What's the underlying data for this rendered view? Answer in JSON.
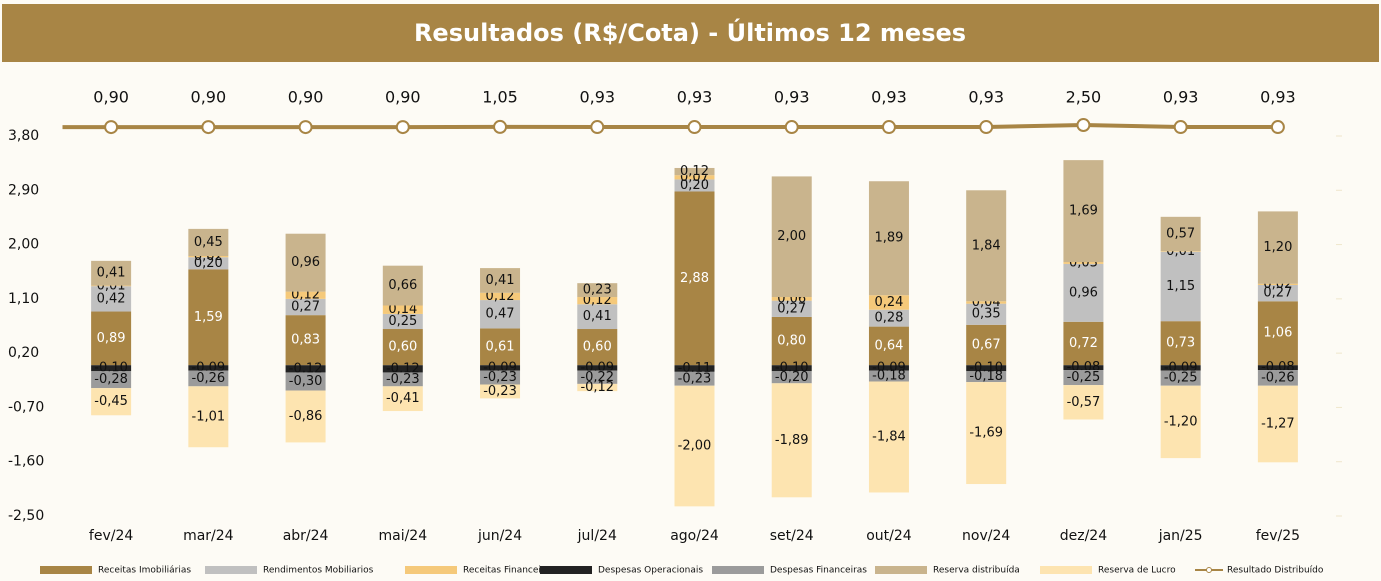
{
  "chart_data": {
    "type": "bar",
    "stacked": true,
    "title": "Resultados (R$/Cota) - Últimos 12 meses",
    "categories": [
      "fev/24",
      "mar/24",
      "abr/24",
      "mai/24",
      "jun/24",
      "jul/24",
      "ago/24",
      "set/24",
      "out/24",
      "nov/24",
      "dez/24",
      "jan/25",
      "fev/25"
    ],
    "ylim": [
      -2.5,
      3.8
    ],
    "yticks": [
      {
        "value": 3.8,
        "label": "3,80"
      },
      {
        "value": 2.9,
        "label": "2,90"
      },
      {
        "value": 2.0,
        "label": "2,00"
      },
      {
        "value": 1.1,
        "label": "1,10"
      },
      {
        "value": 0.2,
        "label": "0,20"
      },
      {
        "value": -0.7,
        "label": "-0,70"
      },
      {
        "value": -1.6,
        "label": "-1,60"
      },
      {
        "value": -2.5,
        "label": "-2,50"
      }
    ],
    "y2lim": [
      -300,
      -6
    ],
    "grid": false,
    "legend": "bottom",
    "series": [
      {
        "name": "Receitas Imobiliárias",
        "color": "#a88545",
        "values": [
          0.89,
          1.59,
          0.83,
          0.6,
          0.61,
          0.6,
          2.88,
          0.8,
          0.64,
          0.67,
          0.72,
          0.73,
          1.06
        ],
        "value_labels": [
          "0,89",
          "1,59",
          "0,83",
          "0,60",
          "0,61",
          "0,60",
          "2,88",
          "0,80",
          "0,64",
          "0,67",
          "0,72",
          "0,73",
          "1,06"
        ]
      },
      {
        "name": "Rendimentos Mobiliarios",
        "color": "#c0c0c0",
        "values": [
          0.42,
          0.2,
          0.27,
          0.25,
          0.47,
          0.41,
          0.2,
          0.27,
          0.28,
          0.35,
          0.96,
          1.15,
          0.27
        ],
        "value_labels": [
          "0,42",
          "0,20",
          "0,27",
          "0,25",
          "0,47",
          "0,41",
          "0,20",
          "0,27",
          "0,28",
          "0,35",
          "0,96",
          "1,15",
          "0,27"
        ]
      },
      {
        "name": "Receitas Financeiras",
        "color": "#f5c97a",
        "values": [
          0.01,
          0.02,
          0.12,
          0.14,
          0.12,
          0.12,
          0.07,
          0.06,
          0.24,
          0.04,
          0.03,
          0.01,
          0.02
        ],
        "value_labels": [
          "0,01",
          "0,02",
          "0,12",
          "0,14",
          "0,12",
          "0,12",
          "0,07",
          "0,06",
          "0,24",
          "0,04",
          "0,03",
          "0,01",
          "0,02"
        ]
      },
      {
        "name": "Despesas Operacionais",
        "color": "#222222",
        "values": [
          -0.1,
          -0.09,
          -0.12,
          -0.12,
          -0.09,
          -0.09,
          -0.11,
          -0.1,
          -0.09,
          -0.1,
          -0.08,
          -0.09,
          -0.08
        ],
        "value_labels": [
          "-0,10",
          "-0,09",
          "-0,12",
          "-0,12",
          "-0,09",
          "-0,09",
          "-0,11",
          "-0,10",
          "-0,09",
          "-0,10",
          "-0,08",
          "-0,09",
          "-0,08"
        ]
      },
      {
        "name": "Despesas Financeiras",
        "color": "#9b9b9b",
        "values": [
          -0.28,
          -0.26,
          -0.3,
          -0.23,
          -0.23,
          -0.22,
          -0.23,
          -0.2,
          -0.18,
          -0.18,
          -0.25,
          -0.25,
          -0.26
        ],
        "value_labels": [
          "-0,28",
          "-0,26",
          "-0,30",
          "-0,23",
          "-0,23",
          "-0,22",
          "-0,23",
          "-0,20",
          "-0,18",
          "-0,18",
          "-0,25",
          "-0,25",
          "-0,26"
        ]
      },
      {
        "name": "Reserva distribuída",
        "color": "#c9b48d",
        "values": [
          0.41,
          0.45,
          0.96,
          0.66,
          0.41,
          0.23,
          0.12,
          2.0,
          1.89,
          1.84,
          1.69,
          0.57,
          1.2
        ],
        "value_labels": [
          "0,41",
          "0,45",
          "0,96",
          "0,66",
          "0,41",
          "0,23",
          "0,12",
          "2,00",
          "1,89",
          "1,84",
          "1,69",
          "0,57",
          "1,20"
        ]
      },
      {
        "name": "Reserva de Lucro",
        "color": "#fde4b0",
        "values": [
          -0.45,
          -1.01,
          -0.86,
          -0.41,
          -0.23,
          -0.12,
          -2.0,
          -1.89,
          -1.84,
          -1.69,
          -0.57,
          -1.2,
          -1.27
        ],
        "value_labels": [
          "-0,45",
          "-1,01",
          "-0,86",
          "-0,41",
          "-0,23",
          "-0,12",
          "-2,00",
          "-1,89",
          "-1,84",
          "-1,69",
          "-0,57",
          "-1,20",
          "-1,27"
        ]
      },
      {
        "name": "Resultado Distribuído",
        "color": "#a88545",
        "type": "line",
        "axis": "y2",
        "values": [
          0.9,
          0.9,
          0.9,
          0.9,
          1.05,
          0.93,
          0.93,
          0.93,
          0.93,
          0.93,
          2.5,
          0.93,
          0.93
        ],
        "value_labels": [
          "0,90",
          "0,90",
          "0,90",
          "0,90",
          "1,05",
          "0,93",
          "0,93",
          "0,93",
          "0,93",
          "0,93",
          "2,50",
          "0,93",
          "0,93"
        ]
      }
    ]
  }
}
